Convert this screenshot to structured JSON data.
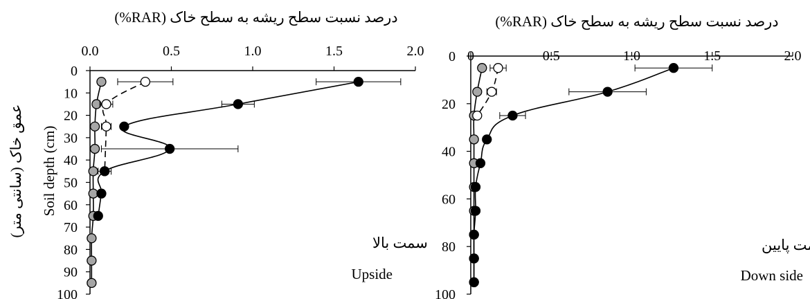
{
  "chart_data": [
    {
      "type": "line",
      "title": "درصد نسبت سطح ریشه به سطح خاک (RAR%)",
      "ylabel_en": "Soil depth (cm)",
      "ylabel_fa": "عمق خاک (سانتی متر)",
      "annotation_fa": "سمت بالا",
      "annotation_en": "Upside",
      "xlim": [
        0,
        2
      ],
      "ylim": [
        0,
        100
      ],
      "y_inverted": true,
      "x_axis_position": "top",
      "x_ticks": [
        "0.0",
        "0.5",
        "1.0",
        "1.5",
        "2.0"
      ],
      "y_ticks": [
        "0",
        "10",
        "20",
        "30",
        "40",
        "50",
        "60",
        "70",
        "80",
        "90",
        "100"
      ],
      "series": [
        {
          "marker": "filled-black",
          "line": "solid",
          "color": "#000000",
          "depth": [
            5,
            15,
            25,
            35,
            45,
            55,
            65
          ],
          "values": [
            1.65,
            0.91,
            0.21,
            0.49,
            0.09,
            0.07,
            0.05
          ],
          "error": [
            0.26,
            0.1,
            null,
            0.42,
            null,
            0.02,
            0.02
          ]
        },
        {
          "marker": "open-white",
          "line": "dashed",
          "color": "#000000",
          "depth": [
            5,
            15,
            25,
            45
          ],
          "values": [
            0.34,
            0.1,
            0.1,
            0.09
          ],
          "error": [
            0.17,
            0.04,
            0.03,
            0.04
          ]
        },
        {
          "marker": "filled-gray",
          "line": "solid",
          "color": "#a6a6a6",
          "depth": [
            5,
            15,
            25,
            35,
            45,
            55,
            65,
            75,
            85,
            95
          ],
          "values": [
            0.07,
            0.04,
            0.03,
            0.03,
            0.02,
            0.02,
            0.02,
            0.01,
            0.01,
            0.01
          ],
          "error": []
        }
      ]
    },
    {
      "type": "line",
      "title": "درصد نسبت سطح ریشه به سطح خاک (RAR%)",
      "annotation_fa": "سمت پایین",
      "annotation_en": "Down side",
      "xlim": [
        0,
        2
      ],
      "ylim": [
        0,
        100
      ],
      "y_inverted": true,
      "x_axis_position": "top",
      "x_ticks": [
        "0",
        "0.5",
        "1.0",
        "1.5",
        "2.0"
      ],
      "y_ticks": [
        "0",
        "20",
        "40",
        "60",
        "80",
        "100"
      ],
      "series": [
        {
          "marker": "filled-black",
          "line": "solid",
          "color": "#000000",
          "depth": [
            5,
            15,
            25,
            35,
            45,
            55,
            65,
            75,
            85,
            95
          ],
          "values": [
            1.26,
            0.85,
            0.26,
            0.1,
            0.06,
            0.03,
            0.03,
            0.02,
            0.02,
            0.02
          ],
          "error": [
            0.24,
            0.24,
            0.08,
            null,
            null,
            null,
            null,
            null,
            null,
            null
          ]
        },
        {
          "marker": "open-white",
          "line": "dashed",
          "color": "#000000",
          "depth": [
            5,
            15,
            25
          ],
          "values": [
            0.17,
            0.13,
            0.04
          ],
          "error": [
            0.05,
            0.03,
            null
          ]
        },
        {
          "marker": "filled-gray",
          "line": "solid",
          "color": "#a6a6a6",
          "depth": [
            5,
            15,
            25,
            35,
            45,
            55,
            65,
            75,
            85,
            95
          ],
          "values": [
            0.07,
            0.04,
            0.02,
            0.02,
            0.02,
            0.02,
            0.02,
            0.02,
            0.02,
            0.02
          ],
          "error": []
        }
      ]
    }
  ]
}
